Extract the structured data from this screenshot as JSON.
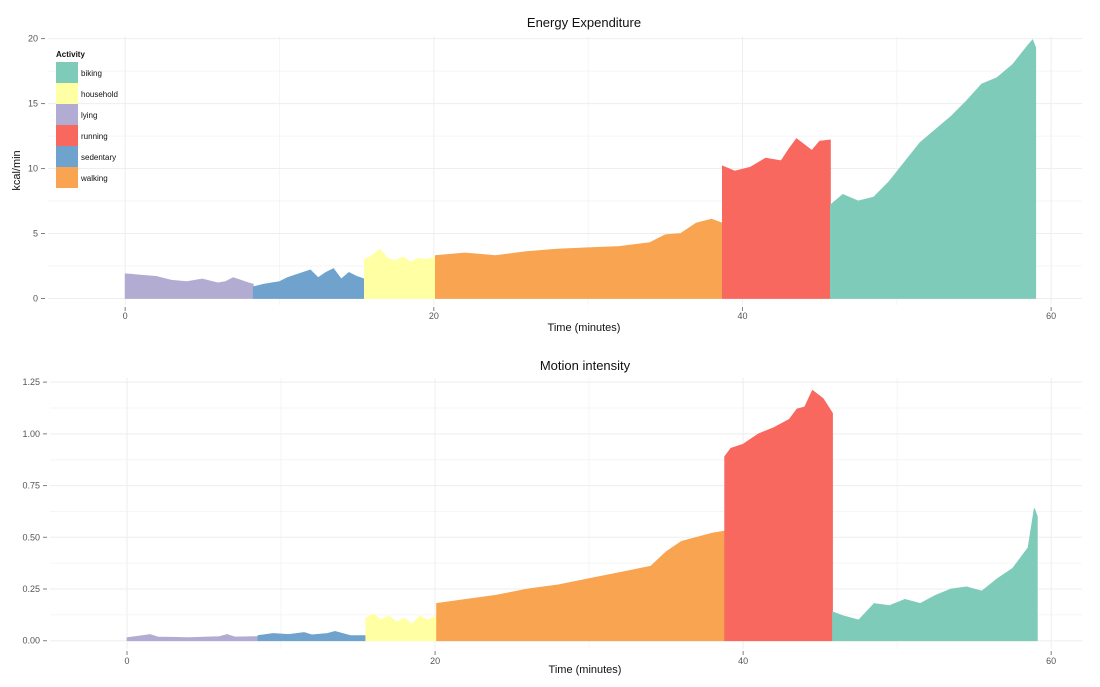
{
  "legend": {
    "title": "Activity",
    "placement": "top-left inside first panel",
    "items": [
      {
        "key": "biking",
        "label": "biking",
        "color": "#7fcbb9"
      },
      {
        "key": "household",
        "label": "household",
        "color": "#ffffa3"
      },
      {
        "key": "lying",
        "label": "lying",
        "color": "#b2acd2"
      },
      {
        "key": "running",
        "label": "running",
        "color": "#f8685f"
      },
      {
        "key": "sedentary",
        "label": "sedentary",
        "color": "#6fa3cd"
      },
      {
        "key": "walking",
        "label": "walking",
        "color": "#f8a450"
      }
    ]
  },
  "chart_data": [
    {
      "type": "area",
      "title": "Energy Expenditure",
      "xlabel": "Time (minutes)",
      "ylabel": "kcal/min",
      "xlim": [
        -5,
        62
      ],
      "ylim": [
        -0.5,
        20.2
      ],
      "xticks": [
        0,
        20,
        40,
        60
      ],
      "yticks": [
        0,
        5,
        10,
        15,
        20
      ],
      "grid": true,
      "segments": [
        {
          "activity": "lying",
          "x": [
            0,
            1,
            2,
            3,
            4,
            5,
            6,
            6.5,
            7,
            7.5,
            8,
            8.3
          ],
          "y": [
            1.9,
            1.8,
            1.7,
            1.4,
            1.3,
            1.5,
            1.2,
            1.3,
            1.6,
            1.4,
            1.2,
            1.1
          ]
        },
        {
          "activity": "sedentary",
          "x": [
            8.3,
            9,
            10,
            10.5,
            11,
            12,
            12.5,
            13,
            13.5,
            14,
            14.5,
            15,
            15.5
          ],
          "y": [
            0.9,
            1.1,
            1.3,
            1.6,
            1.8,
            2.2,
            1.6,
            2.0,
            2.3,
            1.5,
            2.0,
            1.7,
            1.5
          ]
        },
        {
          "activity": "household",
          "x": [
            15.5,
            16,
            16.5,
            17,
            17.5,
            18,
            18.5,
            19,
            19.5,
            20.1
          ],
          "y": [
            3.0,
            3.3,
            3.8,
            3.1,
            2.9,
            3.2,
            2.8,
            3.1,
            3.0,
            3.2
          ]
        },
        {
          "activity": "walking",
          "x": [
            20.1,
            22,
            24,
            26,
            28,
            30,
            32,
            34,
            35,
            36,
            37,
            38,
            38.7
          ],
          "y": [
            3.3,
            3.5,
            3.3,
            3.6,
            3.8,
            3.9,
            4.0,
            4.3,
            4.9,
            5.0,
            5.8,
            6.1,
            5.8
          ]
        },
        {
          "activity": "running",
          "x": [
            38.7,
            39.5,
            40.5,
            41.5,
            42.5,
            43,
            43.5,
            44.5,
            45,
            45.7
          ],
          "y": [
            10.2,
            9.8,
            10.1,
            10.8,
            10.6,
            11.5,
            12.3,
            11.4,
            12.1,
            12.2
          ]
        },
        {
          "activity": "biking",
          "x": [
            45.7,
            46.5,
            47.5,
            48.5,
            49.5,
            50.5,
            51.5,
            52.5,
            53.5,
            54.5,
            55.5,
            56.5,
            57.5,
            58.5,
            58.8,
            59
          ],
          "y": [
            7.2,
            8.0,
            7.5,
            7.8,
            9.0,
            10.5,
            12.0,
            13.0,
            14.0,
            15.2,
            16.5,
            17.0,
            18.0,
            19.5,
            19.9,
            19.3
          ]
        }
      ]
    },
    {
      "type": "area",
      "title": "Motion intensity",
      "xlabel": "Time (minutes)",
      "ylabel": "",
      "xlim": [
        -5,
        62
      ],
      "ylim": [
        -0.04,
        1.27
      ],
      "xticks": [
        0,
        20,
        40,
        60
      ],
      "yticks": [
        0,
        0.25,
        0.5,
        0.75,
        1.0,
        1.25
      ],
      "ytick_labels": [
        "0.00",
        "0.25",
        "0.50",
        "0.75",
        "1.00",
        "1.25"
      ],
      "grid": true,
      "segments": [
        {
          "activity": "lying",
          "x": [
            0,
            1,
            1.5,
            2,
            4,
            6,
            6.5,
            7,
            8.5
          ],
          "y": [
            0.015,
            0.025,
            0.03,
            0.018,
            0.015,
            0.02,
            0.03,
            0.018,
            0.02
          ]
        },
        {
          "activity": "sedentary",
          "x": [
            8.5,
            9.5,
            10.5,
            11.5,
            12,
            13,
            13.5,
            14.5,
            15.5
          ],
          "y": [
            0.025,
            0.035,
            0.03,
            0.04,
            0.028,
            0.035,
            0.045,
            0.025,
            0.025
          ]
        },
        {
          "activity": "household",
          "x": [
            15.5,
            16,
            16.5,
            17,
            17.5,
            18,
            18.5,
            19,
            19.5,
            20.1
          ],
          "y": [
            0.11,
            0.13,
            0.1,
            0.12,
            0.09,
            0.11,
            0.08,
            0.12,
            0.1,
            0.12
          ]
        },
        {
          "activity": "walking",
          "x": [
            20.1,
            22,
            24,
            26,
            28,
            30,
            32,
            34,
            35,
            36,
            37,
            38,
            38.8
          ],
          "y": [
            0.18,
            0.2,
            0.22,
            0.25,
            0.27,
            0.3,
            0.33,
            0.36,
            0.43,
            0.48,
            0.5,
            0.52,
            0.53
          ]
        },
        {
          "activity": "running",
          "x": [
            38.8,
            39.2,
            40,
            41,
            42,
            43,
            43.5,
            44,
            44.5,
            45.2,
            45.8
          ],
          "y": [
            0.89,
            0.93,
            0.95,
            1.0,
            1.03,
            1.07,
            1.12,
            1.13,
            1.21,
            1.17,
            1.1
          ]
        },
        {
          "activity": "biking",
          "x": [
            45.8,
            46.5,
            47.5,
            48.5,
            49.5,
            50.5,
            51.5,
            52.5,
            53.5,
            54.5,
            55.5,
            56.5,
            57.5,
            58.5,
            58.9,
            59.1
          ],
          "y": [
            0.14,
            0.12,
            0.1,
            0.18,
            0.17,
            0.2,
            0.18,
            0.22,
            0.25,
            0.26,
            0.24,
            0.3,
            0.35,
            0.45,
            0.64,
            0.6
          ]
        }
      ]
    }
  ]
}
